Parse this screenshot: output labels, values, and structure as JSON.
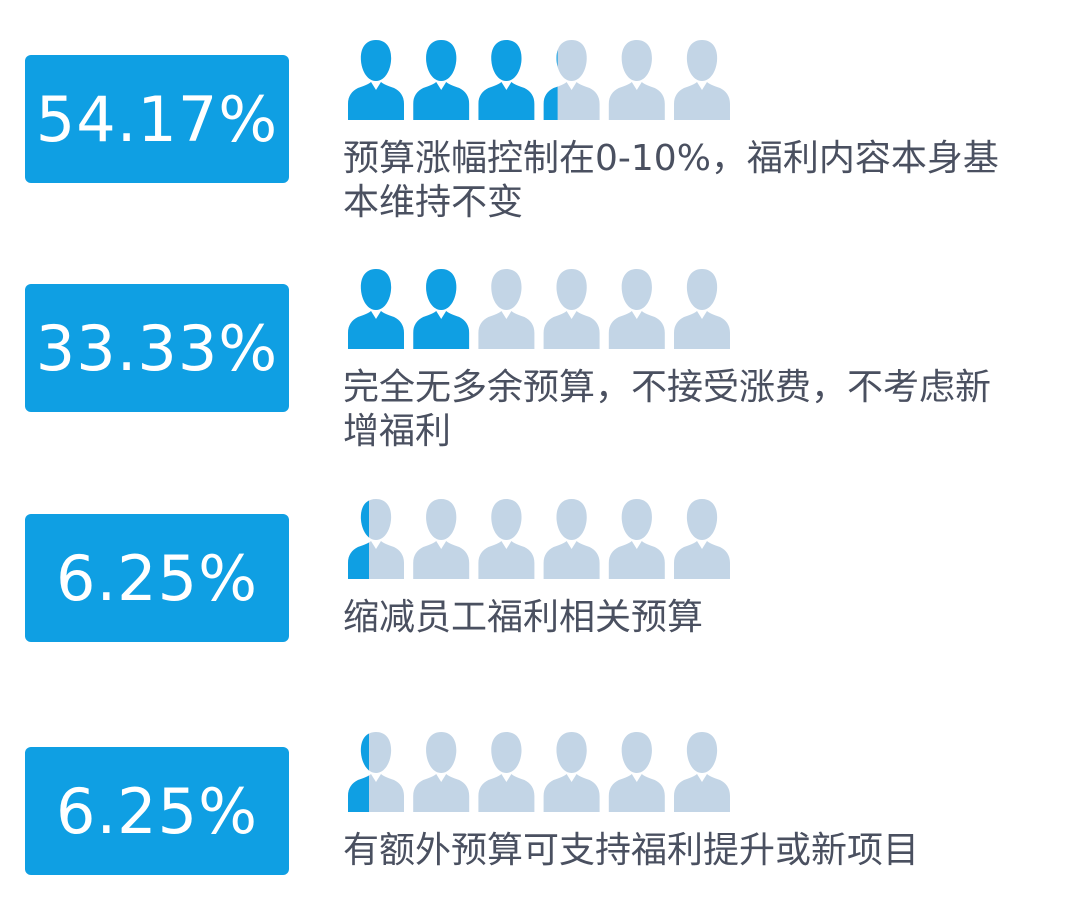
{
  "colors": {
    "accent": "#0f9fe3",
    "icon_empty": "#c3d5e6",
    "text": "#4a5060"
  },
  "icons_per_row": 6,
  "chart_data": {
    "type": "pictogram",
    "categories": [
      "预算涨幅控制在0-10%，福利内容本身基本维持不变",
      "完全无多余预算，不接受涨费，不考虑新增福利",
      "缩减员工福利相关预算",
      "有额外预算可支持福利提升或新项目"
    ],
    "values": [
      54.17,
      33.33,
      6.25,
      6.25
    ],
    "unit": "%"
  },
  "rows": [
    {
      "value": 54.17,
      "percent_label": "54.17%",
      "label": "预算涨幅控制在0-10%，福利内容本身基\n本维持不变"
    },
    {
      "value": 33.33,
      "percent_label": "33.33%",
      "label": "完全无多余预算，不接受涨费，不考虑新\n增福利"
    },
    {
      "value": 6.25,
      "percent_label": "6.25%",
      "label": "缩减员工福利相关预算"
    },
    {
      "value": 6.25,
      "percent_label": "6.25%",
      "label": "有额外预算可支持福利提升或新项目"
    }
  ]
}
